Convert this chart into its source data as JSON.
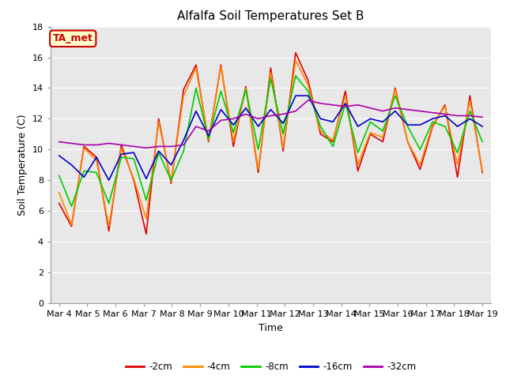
{
  "title": "Alfalfa Soil Temperatures Set B",
  "xlabel": "Time",
  "ylabel": "Soil Temperature (C)",
  "ylim": [
    0,
    18
  ],
  "yticks": [
    0,
    2,
    4,
    6,
    8,
    10,
    12,
    14,
    16,
    18
  ],
  "x_labels": [
    "Mar 4",
    "Mar 5",
    "Mar 6",
    "Mar 7",
    "Mar 8",
    "Mar 9",
    "Mar 10",
    "Mar 11",
    "Mar 12",
    "Mar 13",
    "Mar 14",
    "Mar 15",
    "Mar 16",
    "Mar 17",
    "Mar 18",
    "Mar 19"
  ],
  "annotation_text": "TA_met",
  "annotation_bg": "#ffffcc",
  "annotation_border": "#cc0000",
  "fig_bg": "#ffffff",
  "plot_bg": "#e8e8e8",
  "grid_color": "#ffffff",
  "series": {
    "-2cm": {
      "color": "#dd0000",
      "values": [
        6.5,
        5.0,
        10.2,
        9.5,
        4.7,
        10.3,
        8.0,
        4.5,
        12.0,
        7.8,
        13.9,
        15.5,
        10.5,
        15.5,
        10.2,
        14.1,
        8.5,
        15.3,
        9.9,
        16.3,
        14.5,
        11.0,
        10.5,
        13.8,
        8.6,
        11.0,
        10.5,
        14.0,
        10.5,
        8.7,
        11.5,
        12.9,
        8.2,
        13.5,
        8.5
      ]
    },
    "-4cm": {
      "color": "#ff8800",
      "values": [
        7.2,
        5.1,
        10.1,
        9.3,
        5.0,
        10.1,
        8.1,
        5.5,
        11.8,
        7.9,
        13.5,
        15.3,
        10.6,
        15.4,
        10.5,
        14.0,
        8.7,
        15.0,
        10.1,
        15.8,
        14.2,
        11.2,
        10.6,
        13.5,
        9.0,
        11.1,
        10.8,
        13.9,
        10.5,
        9.0,
        11.6,
        12.8,
        9.0,
        13.2,
        8.6
      ]
    },
    "-8cm": {
      "color": "#00cc00",
      "values": [
        8.3,
        6.3,
        8.6,
        8.5,
        6.5,
        9.5,
        9.4,
        6.7,
        9.8,
        8.0,
        9.9,
        14.0,
        10.7,
        13.8,
        11.1,
        13.9,
        10.0,
        14.6,
        11.0,
        14.8,
        13.8,
        11.5,
        10.2,
        13.0,
        9.8,
        11.8,
        11.2,
        13.5,
        11.5,
        10.0,
        11.8,
        11.5,
        9.8,
        12.5,
        10.5
      ]
    },
    "-16cm": {
      "color": "#0000cc",
      "values": [
        9.6,
        9.0,
        8.2,
        9.5,
        8.0,
        9.7,
        9.8,
        8.1,
        9.9,
        9.0,
        10.6,
        12.5,
        10.9,
        12.6,
        11.6,
        12.7,
        11.5,
        12.6,
        11.7,
        13.5,
        13.5,
        12.0,
        11.8,
        13.0,
        11.5,
        12.0,
        11.8,
        12.5,
        11.6,
        11.6,
        12.0,
        12.2,
        11.5,
        12.0,
        11.5
      ]
    },
    "-32cm": {
      "color": "#aa00aa",
      "values": [
        10.5,
        10.4,
        10.3,
        10.3,
        10.4,
        10.3,
        10.2,
        10.1,
        10.2,
        10.2,
        10.3,
        11.5,
        11.2,
        11.9,
        12.0,
        12.3,
        12.0,
        12.2,
        12.3,
        12.5,
        13.2,
        13.0,
        12.9,
        12.8,
        12.9,
        12.7,
        12.5,
        12.7,
        12.6,
        12.5,
        12.4,
        12.3,
        12.2,
        12.2,
        12.1
      ]
    }
  },
  "legend_order": [
    "-2cm",
    "-4cm",
    "-8cm",
    "-16cm",
    "-32cm"
  ],
  "title_fontsize": 11,
  "axis_fontsize": 8,
  "label_fontsize": 9
}
